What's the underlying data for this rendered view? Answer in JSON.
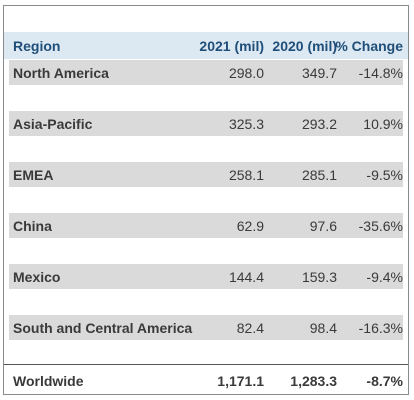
{
  "table": {
    "title": "",
    "columns": [
      "Region",
      "2021 (mil)",
      "2020 (mil)",
      "% Change"
    ],
    "rows": [
      {
        "region": "North America",
        "y2021": "298.0",
        "y2020": "349.7",
        "change": "-14.8%"
      },
      {
        "region": "Asia-Pacific",
        "y2021": "325.3",
        "y2020": "293.2",
        "change": "10.9%"
      },
      {
        "region": "EMEA",
        "y2021": "258.1",
        "y2020": "285.1",
        "change": "-9.5%"
      },
      {
        "region": "China",
        "y2021": "62.9",
        "y2020": "97.6",
        "change": "-35.6%"
      },
      {
        "region": "Mexico",
        "y2021": "144.4",
        "y2020": "159.3",
        "change": "-9.4%"
      },
      {
        "region": "South and Central America",
        "y2021": "82.4",
        "y2020": "98.4",
        "change": "-16.3%"
      }
    ],
    "total": {
      "region": "Worldwide",
      "y2021": "1,171.1",
      "y2020": "1,283.3",
      "change": "-8.7%"
    }
  },
  "chart_data": {
    "type": "table",
    "columns": [
      "Region",
      "2021 (mil)",
      "2020 (mil)",
      "% Change"
    ],
    "rows": [
      [
        "North America",
        298.0,
        349.7,
        -14.8
      ],
      [
        "Asia-Pacific",
        325.3,
        293.2,
        10.9
      ],
      [
        "EMEA",
        258.1,
        285.1,
        -9.5
      ],
      [
        "China",
        62.9,
        97.6,
        -35.6
      ],
      [
        "Mexico",
        144.4,
        159.3,
        -9.4
      ],
      [
        "South and Central America",
        82.4,
        98.4,
        -16.3
      ],
      [
        "Worldwide",
        1171.1,
        1283.3,
        -8.7
      ]
    ]
  },
  "colors": {
    "header_background": "#dce8f2",
    "header_text": "#1f4e79",
    "row_background": "#dadada",
    "text": "#3a3a3a"
  }
}
